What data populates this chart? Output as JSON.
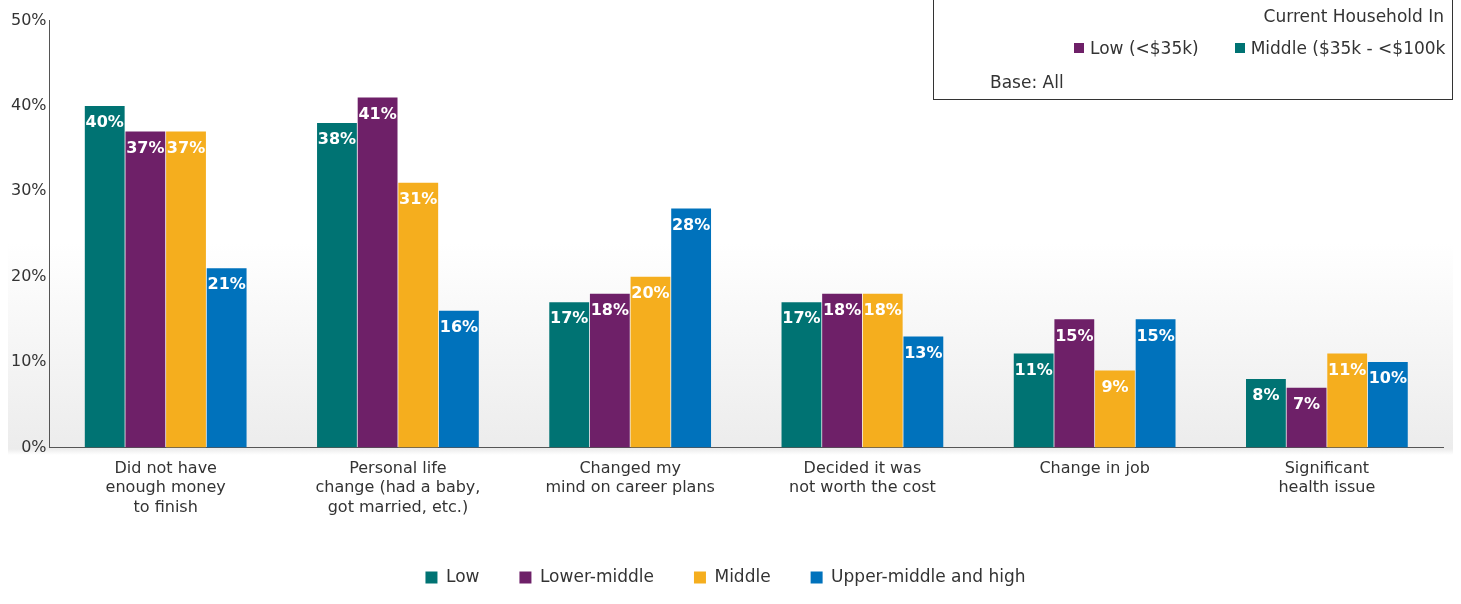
{
  "chart_data": {
    "type": "bar",
    "categories": [
      "Did not have\nenough money\nto finish",
      "Personal life\nchange (had a baby,\ngot married, etc.)",
      "Changed my\nmind on career plans",
      "Decided it was\nnot worth the cost",
      "Change in job",
      "Significant\nhealth issue"
    ],
    "series": [
      {
        "name": "Low",
        "color": "#007373",
        "values": [
          40,
          38,
          17,
          17,
          11,
          8
        ],
        "value_labels": [
          "40%",
          "38%",
          "17%",
          "17%",
          "11%",
          "8%"
        ]
      },
      {
        "name": "Lower-middle",
        "color": "#6e2068",
        "values": [
          37,
          41,
          18,
          18,
          15,
          7
        ],
        "value_labels": [
          "37%",
          "41%",
          "18%",
          "18%",
          "15%",
          "7%"
        ]
      },
      {
        "name": "Middle",
        "color": "#f5ae1e",
        "values": [
          37,
          31,
          20,
          18,
          9,
          11
        ],
        "value_labels": [
          "37%",
          "31%",
          "20%",
          "18%",
          "9%",
          "11%"
        ]
      },
      {
        "name": "Upper-middle and high",
        "color": "#0072bc",
        "values": [
          21,
          16,
          28,
          13,
          15,
          10
        ],
        "value_labels": [
          "21%",
          "16%",
          "28%",
          "13%",
          "15%",
          "10%"
        ]
      }
    ],
    "ylim": [
      0,
      50
    ],
    "yticks": [
      {
        "value": 0,
        "label": "0%"
      },
      {
        "value": 10,
        "label": "10%"
      },
      {
        "value": 20,
        "label": "20%"
      },
      {
        "value": 30,
        "label": "30%"
      },
      {
        "value": 40,
        "label": "40%"
      },
      {
        "value": 50,
        "label": "50%"
      }
    ],
    "grid": false,
    "legend": "bottom",
    "annotations": [
      "Current Household In",
      "Low (<$35k)",
      "Middle ($35k - <$100k",
      "Base: All"
    ]
  }
}
